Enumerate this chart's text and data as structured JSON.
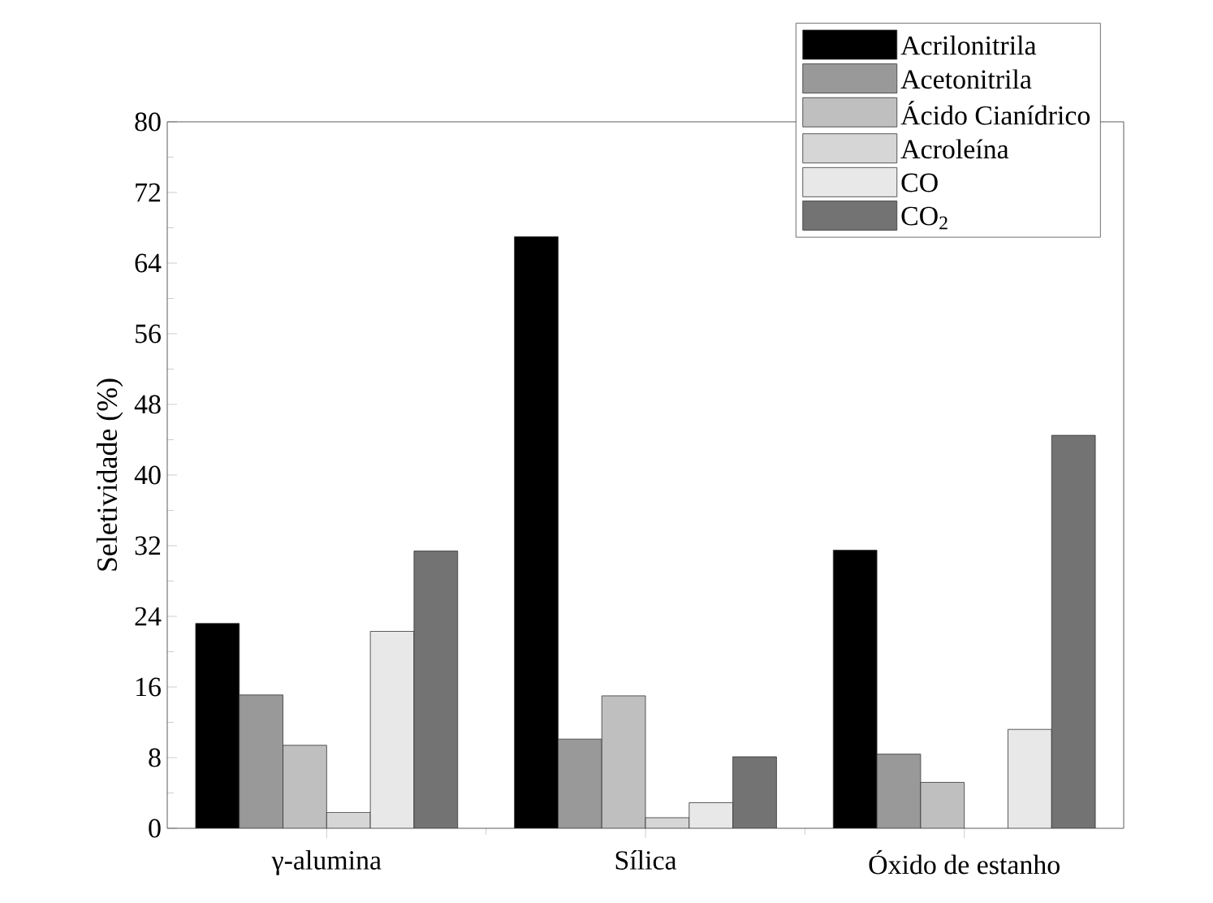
{
  "chart_data": {
    "type": "bar",
    "ylabel": "Seletividade (%)",
    "categories": [
      "γ-alumina",
      "Sílica",
      "Óxido de estanho"
    ],
    "series": [
      {
        "name": "Acrilonitrila",
        "color": "#000000",
        "values": [
          23.2,
          67.0,
          31.5
        ]
      },
      {
        "name": "Acetonitrila",
        "color": "#999999",
        "values": [
          15.1,
          10.1,
          8.4
        ]
      },
      {
        "name": "Ácido Cianídrico",
        "color": "#bfbfbf",
        "values": [
          9.4,
          15.0,
          5.2
        ]
      },
      {
        "name": "Acroleína",
        "color": "#d6d6d6",
        "values": [
          1.8,
          1.2,
          null
        ]
      },
      {
        "name": "CO",
        "color": "#e8e8e8",
        "values": [
          22.3,
          2.9,
          11.2
        ]
      },
      {
        "name": "CO$_{2}$",
        "color": "#737373",
        "values": [
          31.4,
          8.1,
          44.5
        ]
      }
    ],
    "ylim": [
      0,
      80
    ],
    "yticks": [
      0,
      8,
      16,
      24,
      32,
      40,
      48,
      56,
      64,
      72,
      80
    ],
    "legend": "top right"
  }
}
